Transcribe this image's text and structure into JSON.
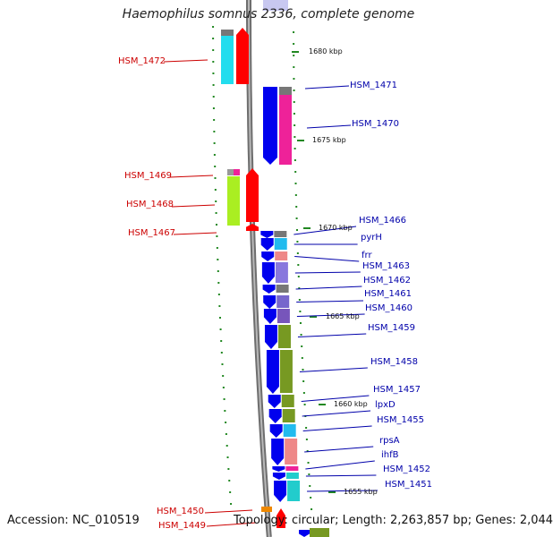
{
  "title": "Haemophilus somnus 2336, complete genome",
  "footer": {
    "accession": "Accession: NC_010519",
    "topology": "Topology: circular; Length: 2,263,857 bp; Genes: 2,044"
  },
  "scale_labels": [
    "1680 kbp",
    "1675 kbp",
    "1670 kbp",
    "1665 kbp",
    "1660 kbp",
    "1655 kbp"
  ],
  "genes_left": [
    "HSM_1472",
    "HSM_1469",
    "HSM_1468",
    "HSM_1467",
    "HSM_1450",
    "HSM_1449"
  ],
  "genes_right": [
    "HSM_1471",
    "HSM_1470",
    "HSM_1466",
    "pyrH",
    "frr",
    "HSM_1463",
    "HSM_1462",
    "HSM_1461",
    "HSM_1460",
    "HSM_1459",
    "HSM_1458",
    "HSM_1457",
    "lpxD",
    "HSM_1455",
    "rpsA",
    "ihfB",
    "HSM_1452",
    "HSM_1451"
  ],
  "colors": {
    "left_label": "#cc0000",
    "right_label": "#0000aa",
    "forward_arrow": "#ff0000",
    "reverse_arrow": "#0000ee",
    "backbone": "#888888",
    "tick": "#228822"
  }
}
